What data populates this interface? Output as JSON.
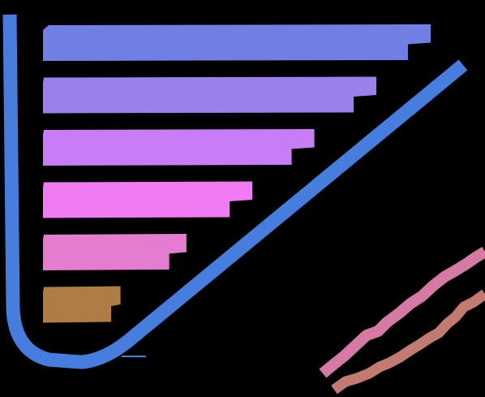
{
  "canvas": {
    "background": "#000000"
  },
  "frame_stroke": {
    "icon": "rounded-corner-stroke",
    "color": "#477ddd"
  },
  "bars": [
    {
      "fill_fraction": 1.0,
      "color": "#717fe2"
    },
    {
      "fill_fraction": 0.86,
      "color": "#9b80ec"
    },
    {
      "fill_fraction": 0.7,
      "color": "#c77df3"
    },
    {
      "fill_fraction": 0.54,
      "color": "#f17bf2"
    },
    {
      "fill_fraction": 0.37,
      "color": "#e47cd0"
    },
    {
      "fill_fraction": 0.2,
      "color": "#ad7d45"
    }
  ],
  "strokes": [
    {
      "icon": "scribble-stroke",
      "color": "#d47aa5"
    },
    {
      "icon": "scribble-stroke",
      "color": "#c27b70"
    }
  ]
}
